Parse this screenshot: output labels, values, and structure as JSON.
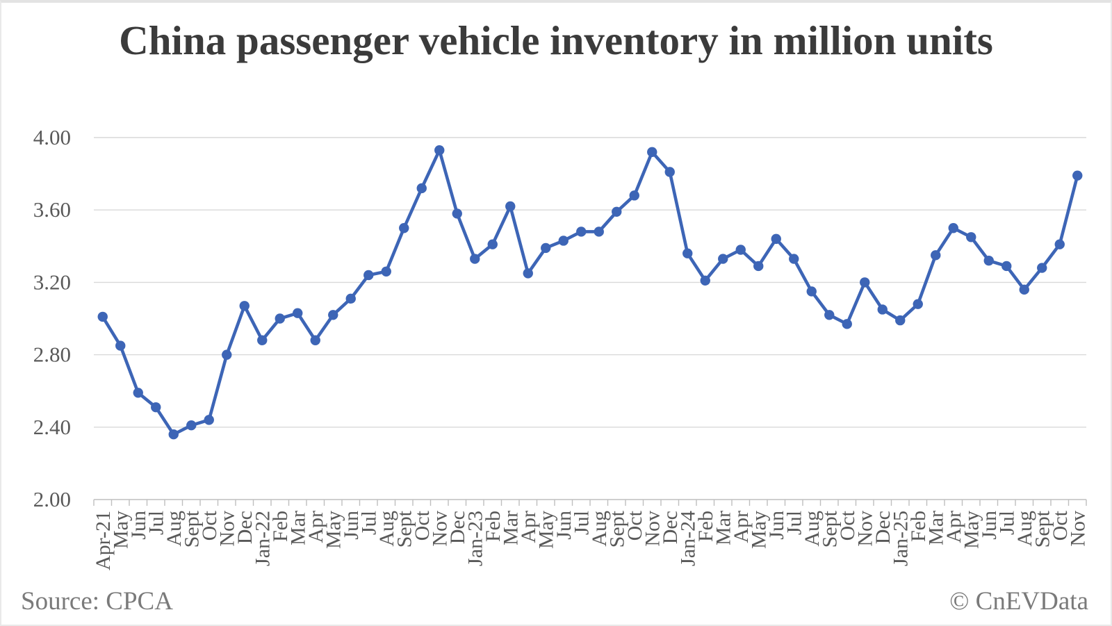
{
  "chart_data": {
    "type": "line",
    "title": "China passenger vehicle inventory in million units",
    "xlabel": "",
    "ylabel": "",
    "grid": true,
    "legend": false,
    "ylim": [
      2.0,
      4.0
    ],
    "ytick_step": 0.4,
    "ytick_labels": [
      "2.00",
      "2.40",
      "2.80",
      "3.20",
      "3.60",
      "4.00"
    ],
    "categories": [
      "Apr-21",
      "May",
      "Jun",
      "Jul",
      "Aug",
      "Sept",
      "Oct",
      "Nov",
      "Dec",
      "Jan-22",
      "Feb",
      "Mar",
      "Apr",
      "May",
      "Jun",
      "Jul",
      "Aug",
      "Sept",
      "Oct",
      "Nov",
      "Dec",
      "Jan-23",
      "Feb",
      "Mar",
      "Apr",
      "May",
      "Jun",
      "Jul",
      "Aug",
      "Sept",
      "Oct",
      "Nov",
      "Dec",
      "Jan-24",
      "Feb",
      "Mar",
      "Apr",
      "May",
      "Jun",
      "Jul",
      "Aug",
      "Sept",
      "Oct",
      "Nov",
      "Dec",
      "Jan-25",
      "Feb",
      "Mar",
      "Apr",
      "May",
      "Jun",
      "Jul",
      "Aug",
      "Sept",
      "Oct",
      "Nov"
    ],
    "values": [
      3.01,
      2.85,
      2.59,
      2.51,
      2.36,
      2.41,
      2.44,
      2.8,
      3.07,
      2.88,
      3.0,
      3.03,
      2.88,
      3.02,
      3.11,
      3.24,
      3.26,
      3.5,
      3.72,
      3.93,
      3.58,
      3.33,
      3.41,
      3.62,
      3.25,
      3.39,
      3.43,
      3.48,
      3.48,
      3.59,
      3.68,
      3.92,
      3.81,
      3.36,
      3.21,
      3.33,
      3.38,
      3.29,
      3.44,
      3.33,
      3.15,
      3.02,
      2.97,
      3.2,
      3.05,
      2.99,
      3.08,
      3.35,
      3.5,
      3.45,
      3.32,
      3.29,
      3.16,
      3.28,
      3.41,
      3.79
    ]
  },
  "footer": {
    "source": "Source: CPCA",
    "credit": "© CnEVData"
  },
  "colors": {
    "line": "#3d65b6",
    "grid": "#d9d9d9",
    "axis": "#bfbfbf",
    "tick_label": "#595959",
    "title_text": "#3b3b3b",
    "footer_text": "#7a7a7a",
    "background": "#ffffff"
  }
}
